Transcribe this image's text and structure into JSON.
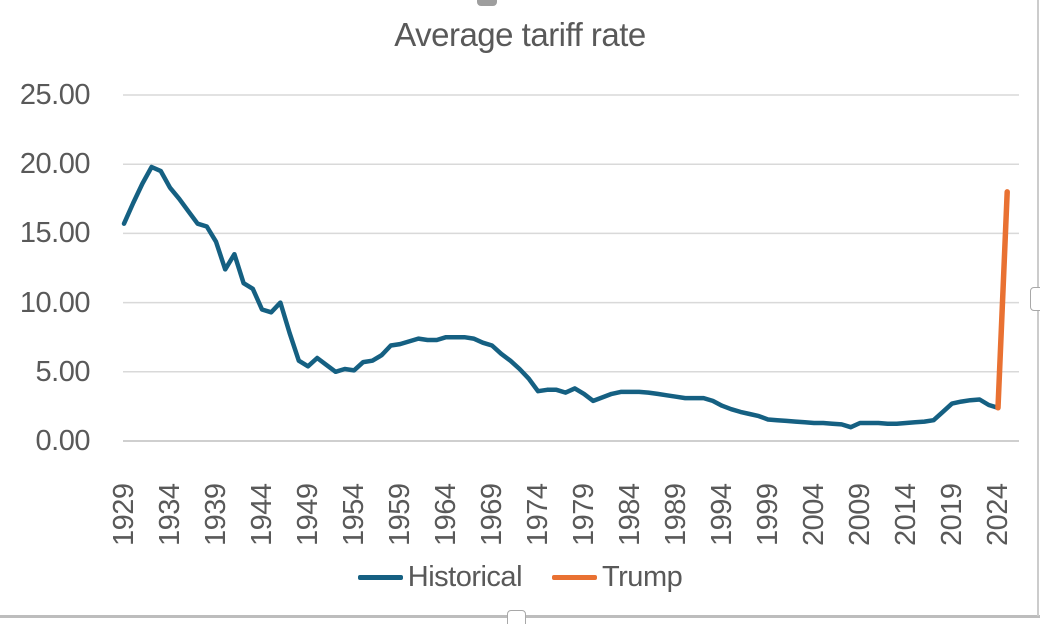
{
  "title": "Average tariff rate",
  "colors": {
    "historical": "#156082",
    "trump": "#E97132",
    "gridline": "#D9D9D9",
    "axis_line": "#BFBFBF",
    "text": "#595959"
  },
  "y_axis": {
    "ticks": [
      "25.00",
      "20.00",
      "15.00",
      "10.00",
      "5.00",
      "0.00"
    ]
  },
  "x_axis": {
    "ticks": [
      "1929",
      "1934",
      "1939",
      "1944",
      "1949",
      "1954",
      "1959",
      "1964",
      "1969",
      "1974",
      "1979",
      "1984",
      "1989",
      "1994",
      "1999",
      "2004",
      "2009",
      "2014",
      "2019",
      "2024"
    ]
  },
  "legend": {
    "historical_label": "Historical",
    "trump_label": "Trump"
  },
  "chart_data": {
    "type": "line",
    "title": "Average tariff rate",
    "xlabel": "",
    "ylabel": "",
    "ylim": [
      0,
      25
    ],
    "x_range": [
      1929,
      2026
    ],
    "grid": true,
    "legend_position": "bottom",
    "series": [
      {
        "name": "Historical",
        "color": "#156082",
        "x_start": 1929,
        "x_step": 1,
        "values": [
          15.7,
          17.2,
          18.6,
          19.8,
          19.5,
          18.3,
          17.5,
          16.6,
          15.7,
          15.5,
          14.4,
          12.4,
          13.5,
          11.4,
          11.0,
          9.5,
          9.3,
          10.0,
          7.8,
          5.8,
          5.4,
          6.0,
          5.5,
          5.0,
          5.2,
          5.1,
          5.7,
          5.8,
          6.2,
          6.9,
          7.0,
          7.2,
          7.4,
          7.3,
          7.3,
          7.5,
          7.5,
          7.5,
          7.4,
          7.1,
          6.9,
          6.3,
          5.8,
          5.2,
          4.5,
          3.6,
          3.7,
          3.7,
          3.5,
          3.8,
          3.4,
          2.9,
          3.15,
          3.4,
          3.55,
          3.55,
          3.55,
          3.5,
          3.4,
          3.3,
          3.2,
          3.1,
          3.1,
          3.1,
          2.9,
          2.55,
          2.3,
          2.1,
          1.95,
          1.8,
          1.55,
          1.5,
          1.45,
          1.4,
          1.35,
          1.3,
          1.3,
          1.25,
          1.2,
          1.0,
          1.3,
          1.3,
          1.3,
          1.25,
          1.25,
          1.3,
          1.35,
          1.4,
          1.5,
          2.1,
          2.7,
          2.85,
          2.95,
          3.0,
          2.6,
          2.4
        ]
      },
      {
        "name": "Trump",
        "color": "#E97132",
        "points": [
          [
            2024,
            2.4
          ],
          [
            2025,
            18.0
          ]
        ]
      }
    ]
  }
}
